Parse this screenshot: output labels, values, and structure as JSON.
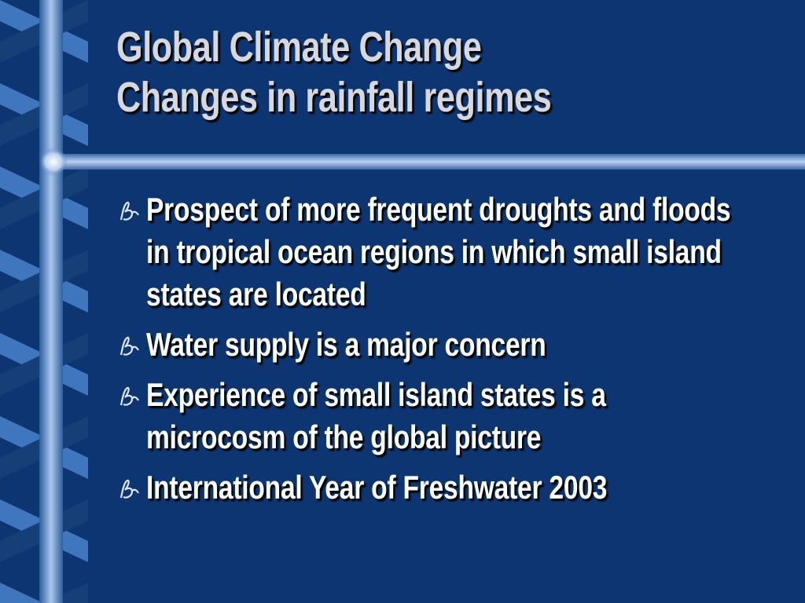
{
  "slide": {
    "title": [
      "Global Climate Change",
      "Changes in rainfall regimes"
    ],
    "bullets": [
      "Prospect of more frequent droughts and floods in tropical ocean regions in which small island states are located",
      "Water supply is a major concern",
      "Experience of small island states is a microcosm of the global picture",
      "International Year of Freshwater 2003"
    ]
  }
}
